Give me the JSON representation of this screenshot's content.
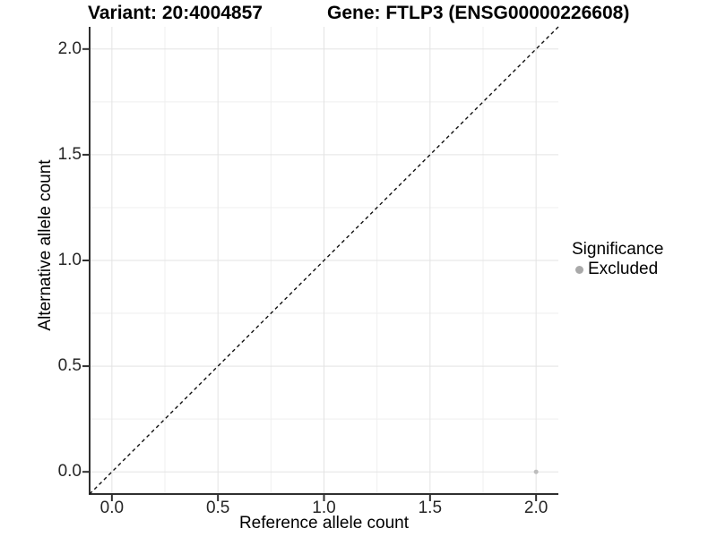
{
  "titles": {
    "variant": "Variant: 20:4004857",
    "gene": "Gene: FTLP3 (ENSG00000226608)"
  },
  "chart_data": {
    "type": "scatter",
    "title_left": "Variant: 20:4004857",
    "title_right": "Gene: FTLP3 (ENSG00000226608)",
    "xlabel": "Reference allele count",
    "ylabel": "Alternative allele count",
    "xlim": [
      -0.105,
      2.105
    ],
    "ylim": [
      -0.105,
      2.105
    ],
    "x_ticks": [
      0,
      0.5,
      1,
      1.5,
      2
    ],
    "y_ticks": [
      0,
      0.5,
      1,
      1.5,
      2
    ],
    "x_tick_labels": [
      "0.0",
      "0.5",
      "1.0",
      "1.5",
      "2.0"
    ],
    "y_tick_labels": [
      "0.0",
      "0.5",
      "1.0",
      "1.5",
      "2.0"
    ],
    "grid": {
      "major": true,
      "minor": true
    },
    "reference_line": {
      "slope": 1,
      "intercept": 0,
      "style": "dashed",
      "color": "#111111"
    },
    "series": [
      {
        "name": "Excluded",
        "color": "#bdbdbd",
        "points": [
          {
            "x": 2.0,
            "y": 0.0
          }
        ]
      }
    ],
    "legend": {
      "title": "Significance",
      "position": "right",
      "items": [
        {
          "label": "Excluded",
          "color": "#a9a9a9"
        }
      ]
    }
  },
  "colors": {
    "grid_major": "#e3e3e3",
    "grid_minor": "#efefef",
    "axis_line": "#2f2f2f",
    "tick_label": "#262626"
  }
}
